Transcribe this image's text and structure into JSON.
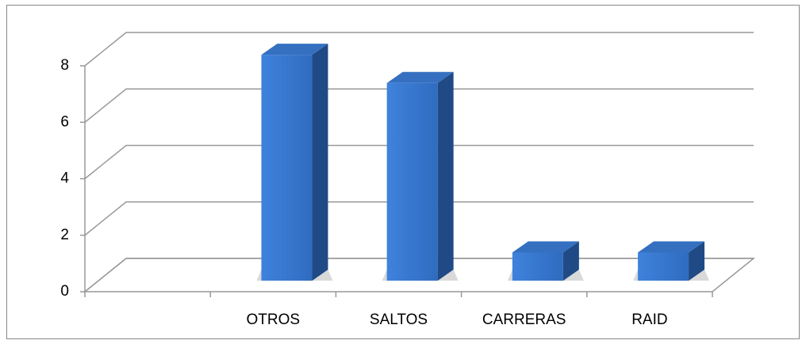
{
  "chart_data": {
    "type": "bar3d",
    "categories": [
      null,
      "OTROS",
      "SALTOS",
      "CARRERAS",
      "RAID"
    ],
    "values": [
      null,
      8,
      7,
      1,
      1
    ],
    "color": "#3a7bd5",
    "ylim": [
      0,
      8
    ],
    "yticks": [
      0,
      2,
      4,
      6,
      8
    ],
    "grid": true
  }
}
